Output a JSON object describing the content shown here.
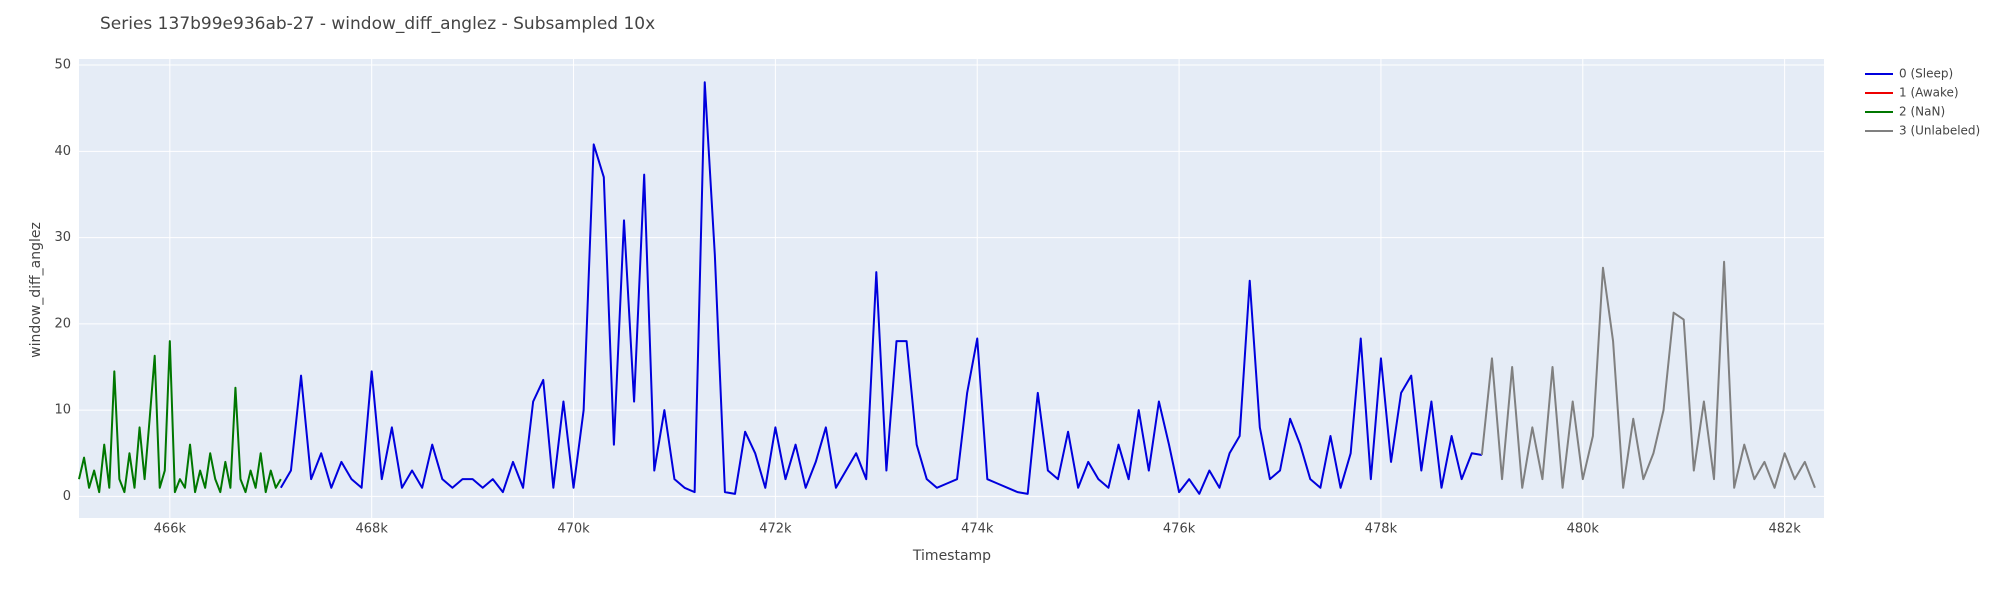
{
  "chart_data": {
    "type": "line",
    "title": "Series 137b99e936ab-27 - window_diff_anglez - Subsampled 10x",
    "x_label": "Timestamp",
    "y_label": "window_diff_anglez",
    "xlim": [
      465100,
      482390
    ],
    "ylim": [
      -2.5,
      50.7
    ],
    "xticks": [
      {
        "value": 466000,
        "label": "466k"
      },
      {
        "value": 468000,
        "label": "468k"
      },
      {
        "value": 470000,
        "label": "470k"
      },
      {
        "value": 472000,
        "label": "472k"
      },
      {
        "value": 474000,
        "label": "474k"
      },
      {
        "value": 476000,
        "label": "476k"
      },
      {
        "value": 478000,
        "label": "478k"
      },
      {
        "value": 480000,
        "label": "480k"
      },
      {
        "value": 482000,
        "label": "482k"
      }
    ],
    "yticks": [
      0,
      10,
      20,
      30,
      40,
      50
    ],
    "grid": true,
    "series": [
      {
        "name": "0 (Sleep)",
        "color": "#0000dd",
        "x": [
          467100,
          467200,
          467300,
          467400,
          467500,
          467600,
          467700,
          467800,
          467900,
          468000,
          468100,
          468200,
          468300,
          468400,
          468500,
          468600,
          468700,
          468800,
          468900,
          469000,
          469100,
          469200,
          469300,
          469400,
          469500,
          469600,
          469700,
          469800,
          469900,
          470000,
          470100,
          470200,
          470300,
          470400,
          470500,
          470600,
          470700,
          470800,
          470900,
          471000,
          471100,
          471200,
          471300,
          471400,
          471500,
          471600,
          471700,
          471800,
          471900,
          472000,
          472100,
          472200,
          472300,
          472400,
          472500,
          472600,
          472700,
          472800,
          472900,
          473000,
          473100,
          473200,
          473300,
          473400,
          473500,
          473600,
          473700,
          473800,
          473900,
          474000,
          474100,
          474200,
          474300,
          474400,
          474500,
          474600,
          474700,
          474800,
          474900,
          475000,
          475100,
          475200,
          475300,
          475400,
          475500,
          475600,
          475700,
          475800,
          475900,
          476000,
          476100,
          476200,
          476300,
          476400,
          476500,
          476600,
          476700,
          476800,
          476900,
          477000,
          477100,
          477200,
          477300,
          477400,
          477500,
          477600,
          477700,
          477800,
          477900,
          478000,
          478100,
          478200,
          478300,
          478400,
          478500,
          478600,
          478700,
          478800,
          478900,
          479000
        ],
        "values": [
          1,
          3,
          14,
          2,
          5,
          1,
          4,
          2,
          1,
          14.5,
          2,
          8,
          1,
          3,
          1,
          6,
          2,
          1,
          2,
          2,
          1,
          2,
          0.5,
          4,
          1,
          11,
          13.5,
          1,
          11,
          1,
          10,
          40.8,
          37,
          6,
          32,
          11,
          37.3,
          3,
          10,
          2,
          1,
          0.5,
          48,
          28,
          0.5,
          0.3,
          7.5,
          5,
          1,
          8,
          2,
          6,
          1,
          4,
          8,
          1,
          3,
          5,
          2,
          26,
          3,
          18,
          18,
          6,
          2,
          1,
          1.5,
          2,
          12,
          18.3,
          2,
          1.5,
          1,
          0.5,
          0.3,
          12,
          3,
          2,
          7.5,
          1,
          4,
          2,
          1,
          6,
          2,
          10,
          3,
          11,
          6,
          0.5,
          2,
          0.3,
          3,
          1,
          5,
          7,
          25,
          8,
          2,
          3,
          9,
          6,
          2,
          1,
          7,
          1,
          5,
          18.3,
          2,
          16,
          4,
          12,
          14,
          3,
          11,
          1,
          7,
          2,
          5,
          4.8
        ]
      },
      {
        "name": "1 (Awake)",
        "color": "#ee0000",
        "x": [],
        "values": []
      },
      {
        "name": "2 (NaN)",
        "color": "#007700",
        "x": [
          465100,
          465150,
          465200,
          465250,
          465300,
          465350,
          465400,
          465450,
          465500,
          465550,
          465600,
          465650,
          465700,
          465750,
          465800,
          465850,
          465900,
          465950,
          466000,
          466050,
          466100,
          466150,
          466200,
          466250,
          466300,
          466350,
          466400,
          466450,
          466500,
          466550,
          466600,
          466650,
          466700,
          466750,
          466800,
          466850,
          466900,
          466950,
          467000,
          467050,
          467100
        ],
        "values": [
          2,
          4.5,
          1,
          3,
          0.5,
          6,
          1,
          14.5,
          2,
          0.5,
          5,
          1,
          8,
          2,
          9,
          16.3,
          1,
          3,
          18,
          0.5,
          2,
          1,
          6,
          0.5,
          3,
          1,
          5,
          2,
          0.5,
          4,
          1,
          12.6,
          2,
          0.5,
          3,
          1,
          5,
          0.5,
          3,
          1,
          2
        ]
      },
      {
        "name": "3 (Unlabeled)",
        "color": "#808080",
        "x": [
          479000,
          479100,
          479200,
          479300,
          479400,
          479500,
          479600,
          479700,
          479800,
          479900,
          480000,
          480100,
          480200,
          480300,
          480400,
          480500,
          480600,
          480700,
          480800,
          480900,
          481000,
          481100,
          481200,
          481300,
          481400,
          481500,
          481600,
          481700,
          481800,
          481900,
          482000,
          482100,
          482200,
          482300
        ],
        "values": [
          4.8,
          16,
          2,
          15,
          1,
          8,
          2,
          15,
          1,
          11,
          2,
          7,
          26.5,
          18,
          1,
          9,
          2,
          5,
          10,
          21.3,
          20.5,
          3,
          11,
          2,
          27.2,
          1,
          6,
          2,
          4,
          1,
          5,
          2,
          4,
          1
        ]
      }
    ]
  }
}
